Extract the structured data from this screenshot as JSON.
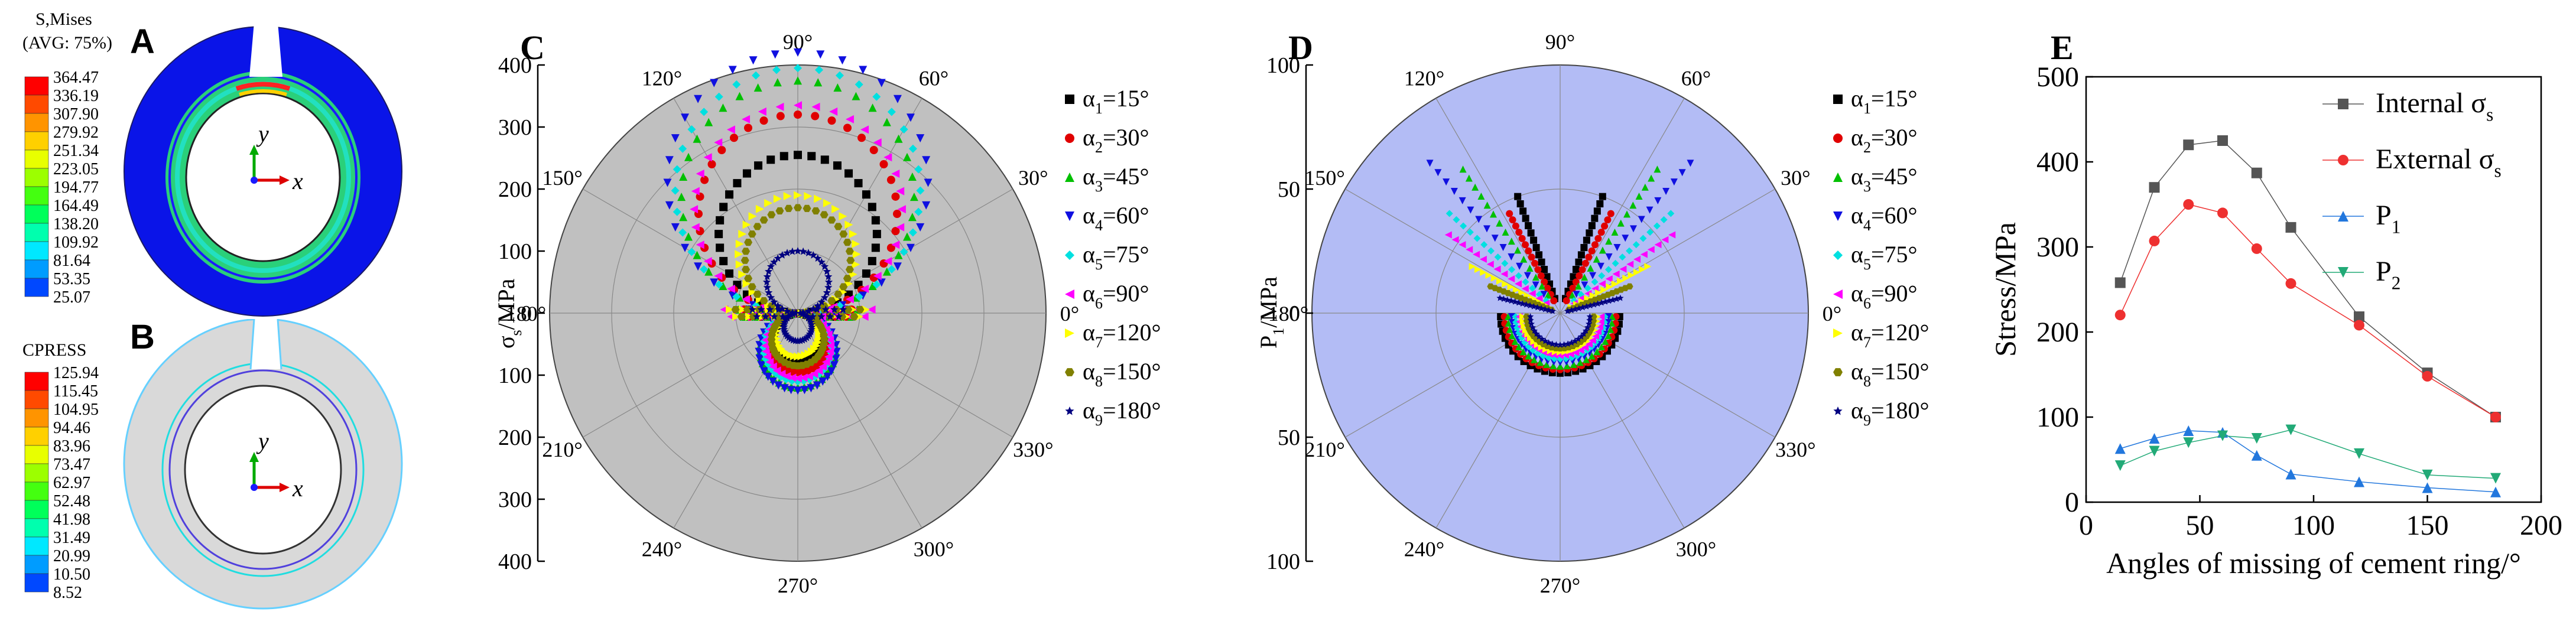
{
  "panels": {
    "A": {
      "label": "A",
      "legend_title": "S,Mises",
      "legend_subtitle": "(AVG: 75%)",
      "values": [
        "364.47",
        "336.19",
        "307.90",
        "279.92",
        "251.34",
        "223.05",
        "194.77",
        "164.49",
        "138.20",
        "109.92",
        "81.64",
        "53.35",
        "25.07"
      ],
      "colors": [
        "#ff0000",
        "#ff4a00",
        "#ff9400",
        "#ffd000",
        "#e8ff00",
        "#9cff00",
        "#44ff10",
        "#00ff5a",
        "#00ffae",
        "#00e8ff",
        "#009cff",
        "#0048ff",
        "#0000ff"
      ],
      "axis_y": "y",
      "axis_x": "x"
    },
    "B": {
      "label": "B",
      "legend_title": "CPRESS",
      "values": [
        "125.94",
        "115.45",
        "104.95",
        "94.46",
        "83.96",
        "73.47",
        "62.97",
        "52.48",
        "41.98",
        "31.49",
        "20.99",
        "10.50",
        "8.52"
      ],
      "colors": [
        "#ff0000",
        "#ff4a00",
        "#ff9400",
        "#ffd000",
        "#e8ff00",
        "#9cff00",
        "#44ff10",
        "#00ff5a",
        "#00ffae",
        "#00e8ff",
        "#009cff",
        "#0048ff",
        "#0000ff"
      ],
      "axis_y": "y",
      "axis_x": "x"
    }
  },
  "chart_data": [
    {
      "id": "C",
      "type": "scatter",
      "subtype": "polar",
      "title": "C",
      "ylabel_main": "σ",
      "ylabel_sub": "s",
      "ylabel_unit": "/MPa",
      "r_max": 400,
      "r_ticks": [
        0,
        100,
        200,
        300,
        400
      ],
      "angle_labels": [
        "0°",
        "30°",
        "60°",
        "90°",
        "120°",
        "150°",
        "180°",
        "210°",
        "240°",
        "270°",
        "300°",
        "330°"
      ],
      "background": "#c0c0c0",
      "series": [
        {
          "name_main": "α",
          "name_sub": "1",
          "name_rest": "=15°",
          "color": "#000000",
          "marker": "square",
          "peak": 255,
          "bottom": 80,
          "side": 80
        },
        {
          "name_main": "α",
          "name_sub": "2",
          "name_rest": "=30°",
          "color": "#e00000",
          "marker": "circle",
          "peak": 320,
          "bottom": 95,
          "side": 95
        },
        {
          "name_main": "α",
          "name_sub": "3",
          "name_rest": "=45°",
          "color": "#00c000",
          "marker": "triangle-up",
          "peak": 375,
          "bottom": 120,
          "side": 105
        },
        {
          "name_main": "α",
          "name_sub": "4",
          "name_rest": "=60°",
          "color": "#1010e0",
          "marker": "triangle-down",
          "peak": 420,
          "bottom": 125,
          "side": 85
        },
        {
          "name_main": "α",
          "name_sub": "5",
          "name_rest": "=75°",
          "color": "#00e0e0",
          "marker": "diamond",
          "peak": 395,
          "bottom": 110,
          "side": 110
        },
        {
          "name_main": "α",
          "name_sub": "6",
          "name_rest": "=90°",
          "color": "#ff00ff",
          "marker": "triangle-left",
          "peak": 335,
          "bottom": 105,
          "side": 130
        },
        {
          "name_main": "α",
          "name_sub": "7",
          "name_rest": "=120°",
          "color": "#ffff00",
          "marker": "triangle-right",
          "peak": 190,
          "bottom": 70,
          "side": 120
        },
        {
          "name_main": "α",
          "name_sub": "8",
          "name_rest": "=150°",
          "color": "#808000",
          "marker": "hexagon",
          "peak": 170,
          "bottom": 85,
          "side": 110
        },
        {
          "name_main": "α",
          "name_sub": "9",
          "name_rest": "=180°",
          "color": "#000080",
          "marker": "star",
          "peak": 100,
          "bottom": 45,
          "side": 80
        }
      ]
    },
    {
      "id": "D",
      "type": "scatter",
      "subtype": "polar",
      "title": "D",
      "ylabel_main": "P",
      "ylabel_sub": "1",
      "ylabel_unit": "/MPa",
      "r_max": 100,
      "r_ticks": [
        0,
        50,
        100
      ],
      "angle_labels": [
        "0°",
        "30°",
        "60°",
        "90°",
        "120°",
        "150°",
        "180°",
        "210°",
        "240°",
        "270°",
        "300°",
        "330°"
      ],
      "background": "#b3bcf5",
      "series": [
        {
          "name_main": "α",
          "name_sub": "1",
          "name_rest": "=15°",
          "color": "#000000",
          "marker": "square"
        },
        {
          "name_main": "α",
          "name_sub": "2",
          "name_rest": "=30°",
          "color": "#e00000",
          "marker": "circle"
        },
        {
          "name_main": "α",
          "name_sub": "3",
          "name_rest": "=45°",
          "color": "#00c000",
          "marker": "triangle-up"
        },
        {
          "name_main": "α",
          "name_sub": "4",
          "name_rest": "=60°",
          "color": "#1010e0",
          "marker": "triangle-down"
        },
        {
          "name_main": "α",
          "name_sub": "5",
          "name_rest": "=75°",
          "color": "#00e0e0",
          "marker": "diamond"
        },
        {
          "name_main": "α",
          "name_sub": "6",
          "name_rest": "=90°",
          "color": "#ff00ff",
          "marker": "triangle-left"
        },
        {
          "name_main": "α",
          "name_sub": "7",
          "name_rest": "=120°",
          "color": "#ffff00",
          "marker": "triangle-right"
        },
        {
          "name_main": "α",
          "name_sub": "8",
          "name_rest": "=150°",
          "color": "#808000",
          "marker": "hexagon"
        },
        {
          "name_main": "α",
          "name_sub": "9",
          "name_rest": "=180°",
          "color": "#000080",
          "marker": "star"
        }
      ]
    },
    {
      "id": "E",
      "type": "line",
      "title": "E",
      "xlabel": "Angles of missing of cement ring/°",
      "ylabel": "Stress/MPa",
      "xlim": [
        0,
        200
      ],
      "ylim": [
        0,
        500
      ],
      "xticks": [
        0,
        50,
        100,
        150,
        200
      ],
      "yticks": [
        0,
        100,
        200,
        300,
        400,
        500
      ],
      "x": [
        15,
        30,
        45,
        60,
        75,
        90,
        120,
        150,
        180
      ],
      "series": [
        {
          "name_main": "Internal σ",
          "name_sub": "s",
          "color": "#555555",
          "marker": "square",
          "values": [
            258,
            370,
            420,
            425,
            387,
            323,
            218,
            152,
            100
          ]
        },
        {
          "name_main": "External σ",
          "name_sub": "s",
          "color": "#ee3030",
          "marker": "circle",
          "values": [
            220,
            307,
            350,
            340,
            298,
            257,
            208,
            148,
            100
          ]
        },
        {
          "name_main": "P",
          "name_sub": "1",
          "color": "#2277dd",
          "marker": "triangle-up",
          "values": [
            63,
            75,
            84,
            82,
            55,
            33,
            24,
            17,
            12
          ]
        },
        {
          "name_main": "P",
          "name_sub": "2",
          "color": "#22aa77",
          "marker": "triangle-down",
          "values": [
            43,
            60,
            70,
            78,
            75,
            85,
            57,
            32,
            28
          ]
        }
      ]
    }
  ]
}
